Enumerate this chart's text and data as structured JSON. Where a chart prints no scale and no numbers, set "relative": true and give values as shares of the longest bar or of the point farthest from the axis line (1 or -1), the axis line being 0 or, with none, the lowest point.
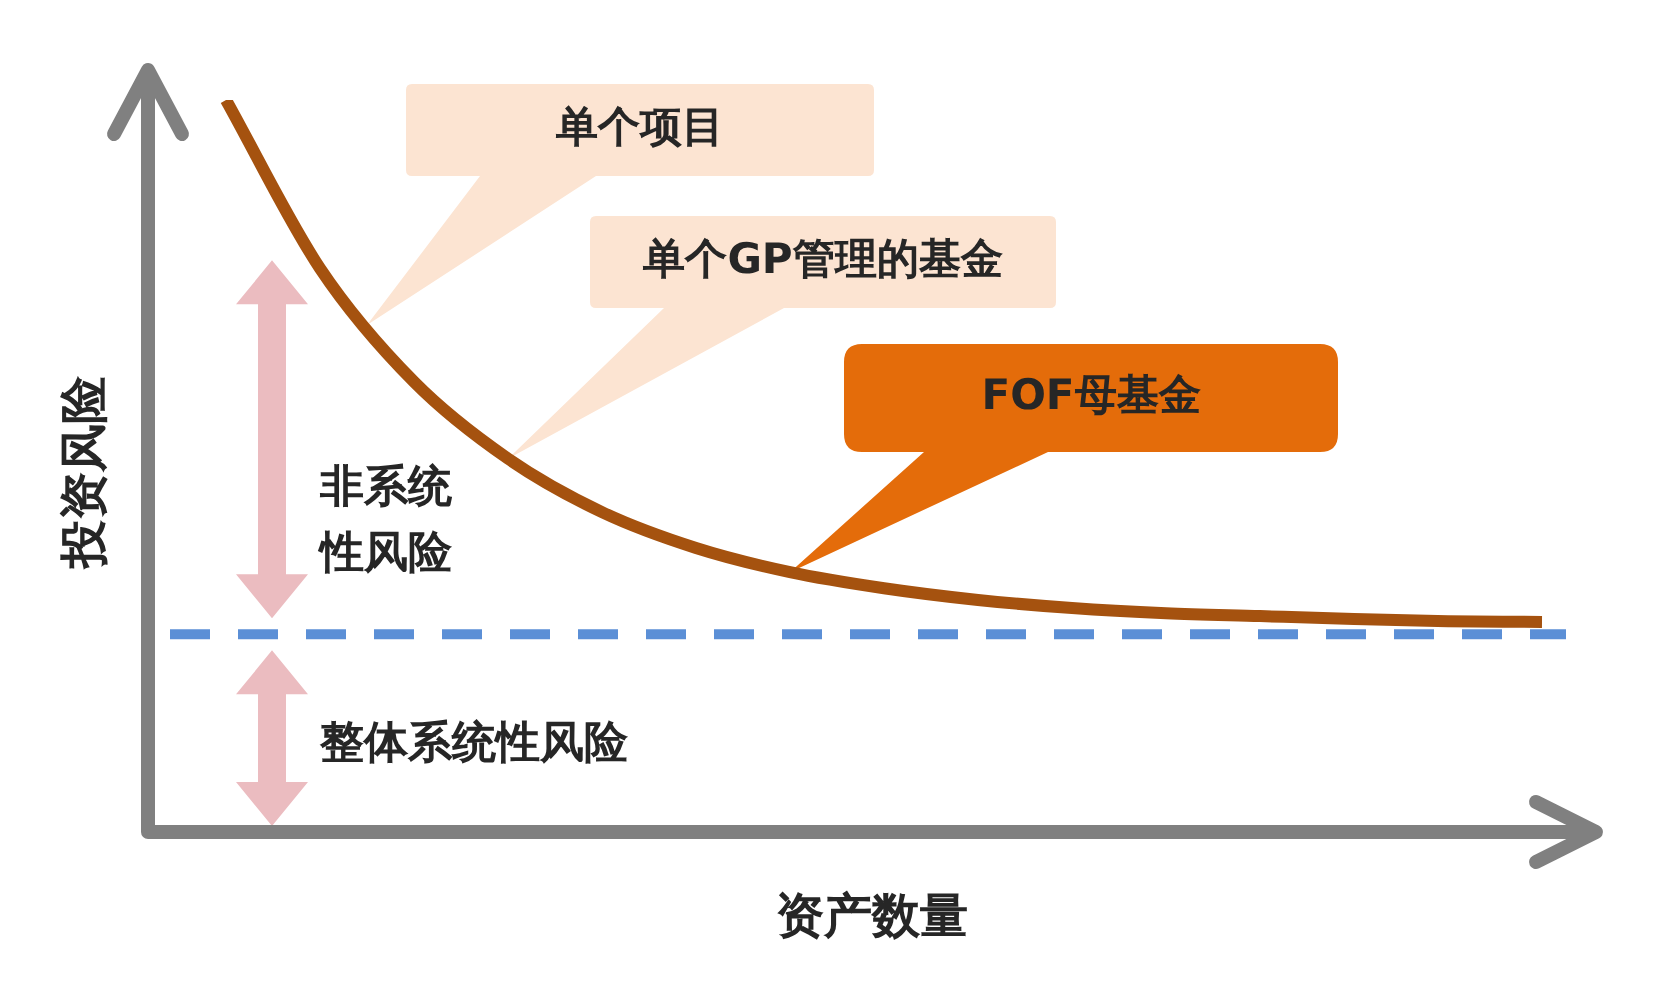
{
  "chart_data": {
    "type": "line",
    "relative": true,
    "xlabel": "资产数量",
    "ylabel": "投资风险",
    "categories": [
      null,
      null,
      null,
      null,
      null,
      null,
      null,
      null,
      null,
      null,
      null,
      null,
      null,
      null,
      null
    ],
    "series": [
      {
        "color": "#a5520f",
        "values": [
          1.0,
          0.77,
          0.615,
          0.51,
          0.437,
          0.388,
          0.355,
          0.333,
          0.317,
          0.306,
          0.299,
          0.295,
          0.291,
          0.288,
          0.287
        ]
      }
    ],
    "marker": "none",
    "line_style": "solid",
    "ref_lines": [
      {
        "axis": "y",
        "value": 0.27,
        "color": "#5b8fd6",
        "line_style": "dashed"
      }
    ],
    "annotations": [
      "单个项目",
      "单个GP管理的基金",
      "FOF母基金",
      "非系统性风险",
      "整体系统性风险"
    ]
  }
}
